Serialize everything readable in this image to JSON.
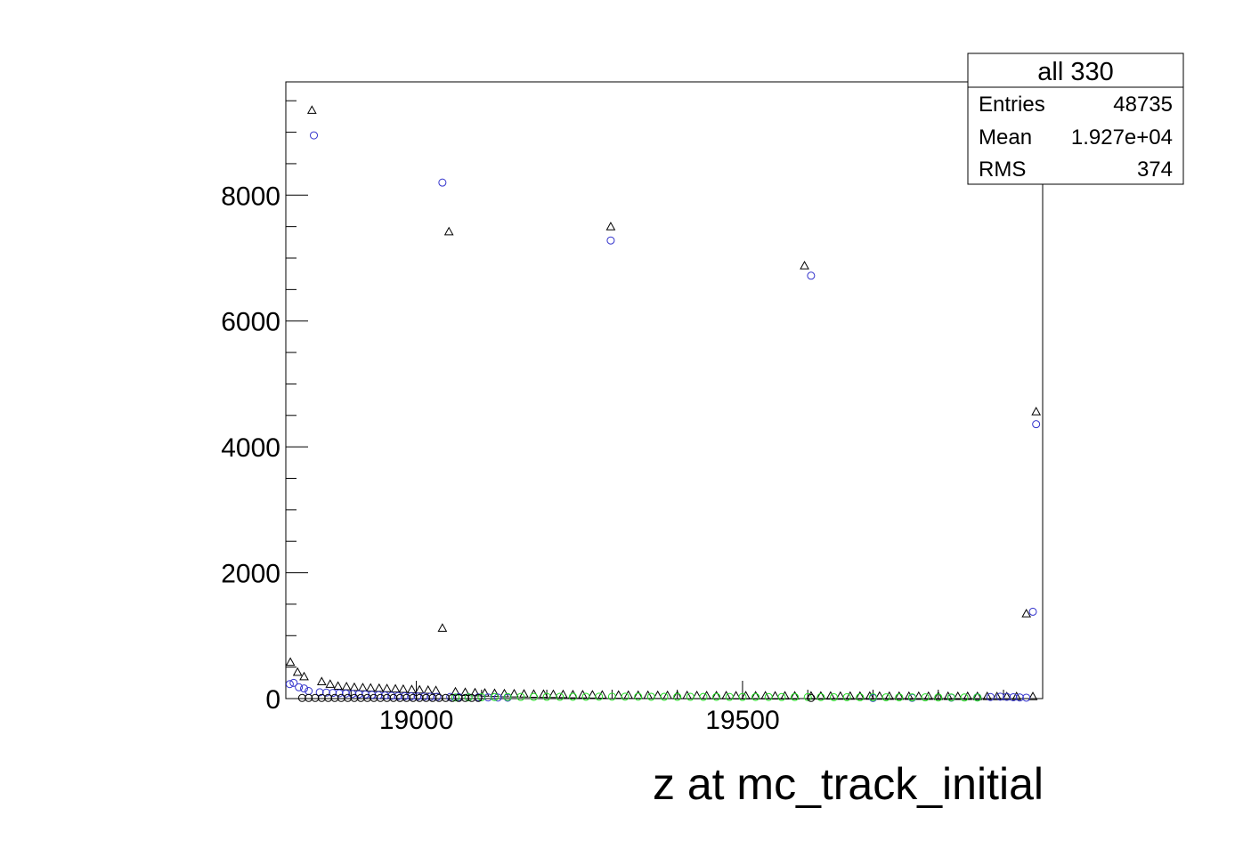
{
  "chart_data": {
    "type": "scatter",
    "title": "",
    "xlabel": "z at mc_track_initial",
    "ylabel": "",
    "xlim": [
      18800,
      19960
    ],
    "ylim": [
      0,
      9800
    ],
    "xticks": [
      {
        "value": 19000,
        "label": "19000"
      },
      {
        "value": 19500,
        "label": "19500"
      }
    ],
    "yticks": [
      {
        "value": 0,
        "label": "0"
      },
      {
        "value": 2000,
        "label": "2000"
      },
      {
        "value": 4000,
        "label": "4000"
      },
      {
        "value": 6000,
        "label": "6000"
      },
      {
        "value": 8000,
        "label": "8000"
      }
    ],
    "grid": false,
    "legend": "none",
    "stats_box": {
      "title": "all 330",
      "rows": [
        {
          "label": "Entries",
          "value": "48735"
        },
        {
          "label": "Mean",
          "value": "1.927e+04"
        },
        {
          "label": "RMS",
          "value": "374"
        }
      ]
    },
    "series": [
      {
        "marker": "triangle",
        "color": "#000000",
        "x": [
          18807,
          18818,
          18828,
          18840,
          18855,
          18868,
          18880,
          18893,
          18905,
          18918,
          18930,
          18943,
          18955,
          18968,
          18980,
          18993,
          19005,
          19018,
          19030,
          19040,
          19050,
          19060,
          19075,
          19090,
          19105,
          19120,
          19135,
          19150,
          19165,
          19180,
          19195,
          19210,
          19225,
          19240,
          19255,
          19270,
          19285,
          19298,
          19310,
          19325,
          19340,
          19355,
          19370,
          19385,
          19400,
          19415,
          19430,
          19445,
          19460,
          19475,
          19490,
          19505,
          19520,
          19535,
          19550,
          19565,
          19580,
          19595,
          19605,
          19620,
          19635,
          19650,
          19665,
          19680,
          19695,
          19710,
          19725,
          19740,
          19755,
          19770,
          19785,
          19800,
          19815,
          19830,
          19845,
          19860,
          19875,
          19890,
          19905,
          19920,
          19935,
          19945,
          19950
        ],
        "y": [
          580,
          420,
          350,
          9350,
          270,
          230,
          200,
          190,
          180,
          175,
          170,
          165,
          160,
          155,
          150,
          145,
          140,
          135,
          130,
          1120,
          7420,
          110,
          100,
          95,
          90,
          85,
          80,
          78,
          75,
          72,
          70,
          68,
          66,
          64,
          62,
          60,
          58,
          7500,
          56,
          55,
          54,
          53,
          52,
          51,
          50,
          50,
          49,
          48,
          48,
          47,
          46,
          46,
          45,
          45,
          44,
          44,
          43,
          6880,
          43,
          42,
          42,
          41,
          41,
          40,
          40,
          40,
          39,
          39,
          38,
          38,
          38,
          37,
          37,
          36,
          36,
          35,
          35,
          34,
          34,
          34,
          1350,
          33,
          4560
        ]
      },
      {
        "marker": "circle",
        "color": "#3333cc",
        "x": [
          18806,
          18812,
          18820,
          18828,
          18835,
          18843,
          18852,
          18862,
          18872,
          18882,
          18892,
          18902,
          18912,
          18922,
          18932,
          18942,
          18952,
          18962,
          18972,
          18982,
          18992,
          19002,
          19012,
          19022,
          19032,
          19040,
          19052,
          19065,
          19080,
          19095,
          19110,
          19125,
          19140,
          19298,
          19605,
          19700,
          19760,
          19820,
          19860,
          19880,
          19895,
          19905,
          19915,
          19925,
          19935,
          19945,
          19950
        ],
        "y": [
          230,
          250,
          180,
          160,
          120,
          8950,
          100,
          95,
          90,
          85,
          80,
          75,
          70,
          65,
          60,
          55,
          50,
          45,
          40,
          38,
          36,
          34,
          32,
          30,
          28,
          8200,
          26,
          24,
          22,
          20,
          18,
          16,
          15,
          7280,
          6720,
          10,
          12,
          15,
          20,
          25,
          30,
          28,
          22,
          18,
          15,
          1380,
          4360
        ]
      },
      {
        "marker": "circle",
        "color": "#22dd22",
        "x": [
          19060,
          19080,
          19100,
          19120,
          19140,
          19160,
          19180,
          19200,
          19220,
          19240,
          19260,
          19280,
          19300,
          19320,
          19340,
          19360,
          19380,
          19400,
          19420,
          19440,
          19460,
          19480,
          19500,
          19520,
          19540,
          19560,
          19580,
          19600,
          19620,
          19640,
          19660,
          19680,
          19700,
          19720,
          19740,
          19760,
          19780,
          19800,
          19820,
          19840,
          19860
        ],
        "y": [
          18,
          20,
          22,
          24,
          25,
          26,
          27,
          28,
          28,
          29,
          29,
          30,
          30,
          30,
          30,
          29,
          29,
          28,
          28,
          27,
          27,
          26,
          26,
          25,
          25,
          24,
          24,
          23,
          23,
          22,
          22,
          21,
          21,
          20,
          20,
          19,
          19,
          18,
          18,
          17,
          17
        ]
      },
      {
        "marker": "circle",
        "color": "#000000",
        "x": [
          18825,
          18835,
          18845,
          18855,
          18865,
          18875,
          18885,
          18895,
          18905,
          18915,
          18925,
          18935,
          18945,
          18955,
          18965,
          18975,
          18985,
          18995,
          19005,
          19015,
          19025,
          19035,
          19045,
          19055,
          19065,
          19075,
          19085,
          19095,
          19605
        ],
        "y": [
          10,
          10,
          10,
          10,
          10,
          10,
          10,
          10,
          10,
          10,
          10,
          10,
          10,
          10,
          10,
          10,
          10,
          10,
          10,
          10,
          10,
          10,
          10,
          10,
          10,
          10,
          10,
          10,
          10
        ]
      }
    ]
  }
}
